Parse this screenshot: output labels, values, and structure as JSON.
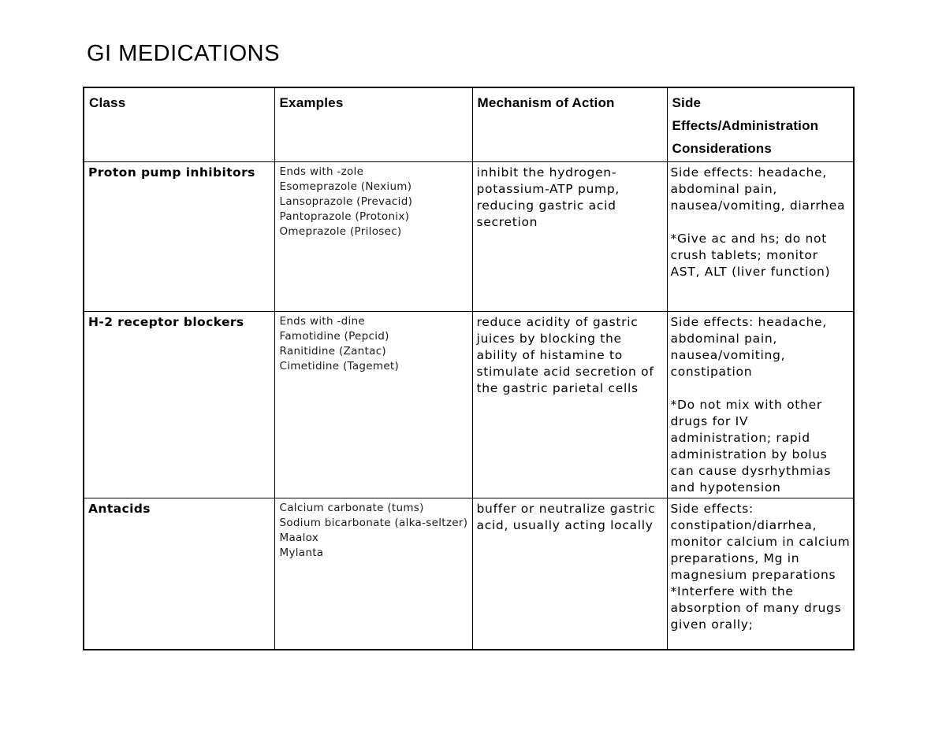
{
  "page": {
    "title": "GI MEDICATIONS"
  },
  "table": {
    "headers": {
      "class": "Class",
      "examples": "Examples",
      "mechanism": "Mechanism of Action",
      "side_effects": "Side\nEffects/Administration\nConsiderations"
    },
    "rows": [
      {
        "class": "Proton pump inhibitors",
        "examples": [
          "Ends with -zole",
          "Esomeprazole (Nexium)",
          "Lansoprazole (Prevacid)",
          "Pantoprazole (Protonix)",
          "Omeprazole (Prilosec)"
        ],
        "mechanism": "inhibit the hydrogen-potassium-ATP pump, reducing gastric acid secretion",
        "side_effects": [
          "Side effects: headache, abdominal pain, nausea/vomiting, diarrhea",
          "",
          "*Give ac and hs; do not crush tablets; monitor AST, ALT (liver function)"
        ]
      },
      {
        "class": "H-2 receptor blockers",
        "examples": [
          "Ends with -dine",
          "Famotidine (Pepcid)",
          "Ranitidine (Zantac)",
          "Cimetidine (Tagemet)"
        ],
        "mechanism": "reduce acidity of gastric juices by blocking the ability of histamine to stimulate acid secretion of the gastric parietal cells",
        "side_effects": [
          "Side effects: headache, abdominal pain, nausea/vomiting, constipation",
          "",
          "*Do not mix with other drugs for IV administration; rapid administration by bolus can cause dysrhythmias and hypotension"
        ]
      },
      {
        "class": "Antacids",
        "examples": [
          "Calcium carbonate (tums)",
          "Sodium bicarbonate (alka-seltzer)",
          "Maalox",
          "Mylanta"
        ],
        "mechanism": "buffer or neutralize gastric acid, usually acting locally",
        "side_effects": [
          "Side effects: constipation/diarrhea, monitor calcium in calcium preparations, Mg in magnesium preparations",
          "*Interfere with the absorption of many drugs given orally;"
        ]
      }
    ]
  }
}
